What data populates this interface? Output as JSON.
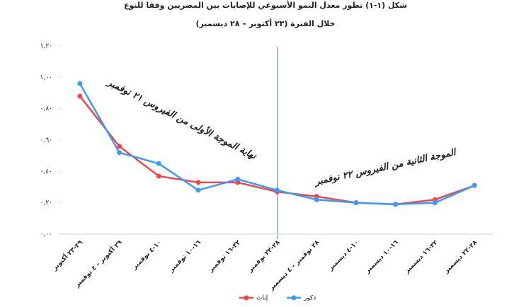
{
  "chart_data": {
    "type": "line",
    "title": "شكل (١-١) تطور معدل النمو الأسبوعي للإصابات بين المصريين وفقا للنوع",
    "subtitle": "خلال الفترة (٢٣ أكتوبر – ٢٨ ديسمبر)",
    "categories": [
      "٢٩-٢٣ أكتوبر",
      "٢٩ أكتوبر - ٤ نوفمبر",
      "١٠-٤ نوفمبر",
      "١٦-١٠ نوفمبر",
      "٢٢-١٦ نوفمبر",
      "٢٨-٢٢ نوفمبر",
      "٢٨ نوفمبر - ٤ ديسمبر",
      "١٠-٤ ديسمبر",
      "١٦-١٠ ديسمبر",
      "٢٢-١٦ ديسمبر",
      "٢٨-٢٢ ديسمبر"
    ],
    "series": [
      {
        "name": "إناث",
        "color": "#f0474b",
        "values": [
          0.88,
          0.56,
          0.37,
          0.33,
          0.33,
          0.27,
          0.24,
          0.2,
          0.19,
          0.22,
          0.31
        ]
      },
      {
        "name": "ذكور",
        "color": "#3d9bf5",
        "values": [
          0.96,
          0.52,
          0.45,
          0.28,
          0.35,
          0.28,
          0.22,
          0.2,
          0.19,
          0.2,
          0.31
        ]
      }
    ],
    "ylim": [
      0,
      1.2
    ],
    "yticks": [
      {
        "value": 0,
        "label": "٠,٠٠"
      },
      {
        "value": 0.2,
        "label": "٠,٢٠"
      },
      {
        "value": 0.4,
        "label": "٠,٤٠"
      },
      {
        "value": 0.6,
        "label": "٠,٦٠"
      },
      {
        "value": 0.8,
        "label": "٠,٨٠"
      },
      {
        "value": 1.0,
        "label": "١,٠٠"
      },
      {
        "value": 1.2,
        "label": "١,٢٠"
      }
    ],
    "annotations": [
      "نهاية الموجة الأولى من الفيروس ٢١ نوفمبر",
      "الموجة الثانية من الفيروس ٢٢ نوفمبر"
    ]
  }
}
